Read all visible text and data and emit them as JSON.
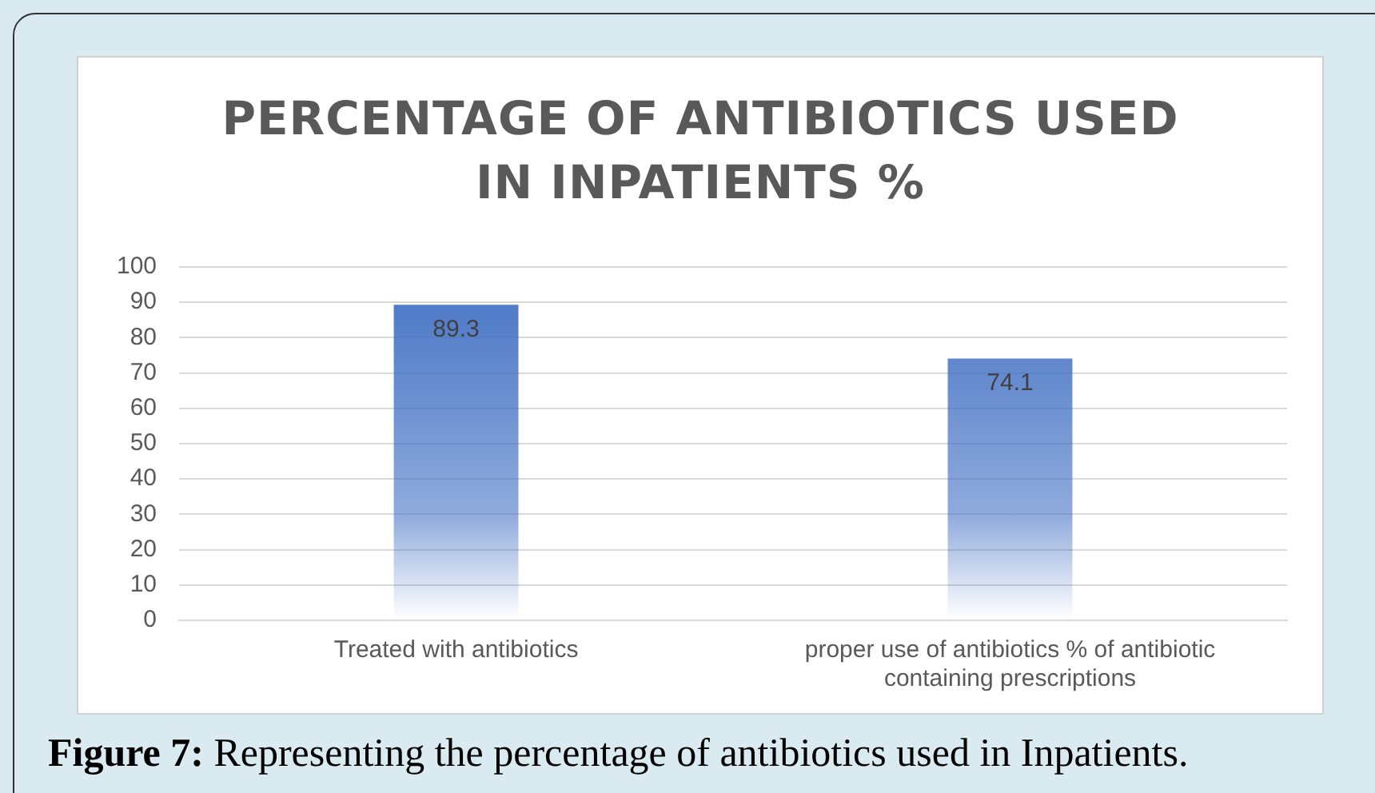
{
  "chart_data": {
    "type": "bar",
    "title": "PERCENTAGE OF ANTIBIOTICS USED IN INPATIENTS  %",
    "categories": [
      "Treated with antibiotics",
      "proper use of antibiotics % of antibiotic containing prescriptions"
    ],
    "values": [
      89.3,
      74.1
    ],
    "color": "#4472c4",
    "ylim": [
      0,
      100
    ],
    "yticks": [
      0,
      10,
      20,
      30,
      40,
      50,
      60,
      70,
      80,
      90,
      100
    ],
    "grid": "y",
    "data_labels": true,
    "legend": false,
    "annotations": [
      "Figure 7: Representing the percentage of antibiotics used in Inpatients."
    ]
  }
}
